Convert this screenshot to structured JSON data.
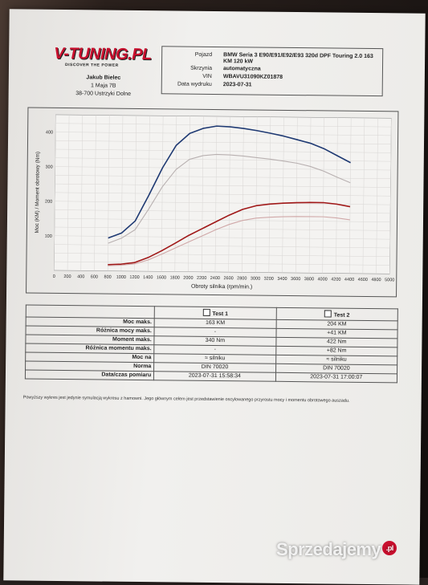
{
  "logo": {
    "wordmark": "V-TUNING.PL",
    "tagline": "DISCOVER THE POWER"
  },
  "owner": {
    "name": "Jakub Bielec",
    "street": "1 Maja 7B",
    "city": "38-700 Ustrzyki Dolne"
  },
  "vehicle": {
    "rows": [
      {
        "key": "Pojazd",
        "value": "BMW Seria 3 E90/E91/E92/E93 320d DPF Touring 2.0 163 KM 120 kW"
      },
      {
        "key": "Skrzynia",
        "value": "automatyczna"
      },
      {
        "key": "VIN",
        "value": "WBAVU31090KZ01878"
      },
      {
        "key": "Data wydruku",
        "value": "2023-07-31"
      }
    ]
  },
  "chart_data": {
    "type": "line",
    "xlabel": "Obroty silnika (rpm/min.)",
    "ylabel": "Moc (KM) / Moment obrotowy (Nm)",
    "xlim": [
      0,
      5000
    ],
    "ylim": [
      0,
      450
    ],
    "x_ticks": [
      0,
      200,
      400,
      600,
      800,
      1000,
      1200,
      1400,
      1600,
      1800,
      2000,
      2200,
      2400,
      2600,
      2800,
      3000,
      3200,
      3400,
      3600,
      3800,
      4000,
      4200,
      4400,
      4600,
      4800,
      5000
    ],
    "y_ticks": [
      100,
      200,
      300,
      400
    ],
    "grid": true,
    "series": [
      {
        "color": "#1f3a73",
        "x": [
          800,
          1000,
          1200,
          1400,
          1600,
          1800,
          2000,
          2200,
          2400,
          2600,
          2800,
          3000,
          3200,
          3400,
          3600,
          3800,
          4000,
          4200,
          4400
        ],
        "values": [
          95,
          110,
          145,
          220,
          300,
          365,
          400,
          415,
          422,
          420,
          416,
          410,
          403,
          395,
          385,
          375,
          360,
          340,
          320
        ]
      },
      {
        "color": "#b8b0b0",
        "x": [
          800,
          1000,
          1200,
          1400,
          1600,
          1800,
          2000,
          2200,
          2400,
          2600,
          2800,
          3000,
          3200,
          3400,
          3600,
          3800,
          4000,
          4200,
          4400
        ],
        "values": [
          80,
          95,
          120,
          180,
          245,
          295,
          325,
          336,
          340,
          339,
          336,
          332,
          328,
          323,
          317,
          308,
          295,
          278,
          262
        ]
      },
      {
        "color": "#a01818",
        "x": [
          800,
          1000,
          1200,
          1400,
          1600,
          1800,
          2000,
          2200,
          2400,
          2600,
          2800,
          3000,
          3200,
          3400,
          3600,
          3800,
          4000,
          4200,
          4400
        ],
        "values": [
          18,
          20,
          25,
          40,
          60,
          82,
          105,
          125,
          145,
          165,
          182,
          193,
          198,
          201,
          203,
          204,
          204,
          200,
          193
        ]
      },
      {
        "color": "#d0a8a8",
        "x": [
          800,
          1000,
          1200,
          1400,
          1600,
          1800,
          2000,
          2200,
          2400,
          2600,
          2800,
          3000,
          3200,
          3400,
          3600,
          3800,
          4000,
          4200,
          4400
        ],
        "values": [
          15,
          17,
          21,
          33,
          50,
          68,
          86,
          104,
          122,
          138,
          150,
          157,
          160,
          162,
          163,
          163,
          163,
          160,
          155
        ]
      }
    ]
  },
  "results": {
    "headers": [
      "Test 1",
      "Test 2"
    ],
    "rows": [
      {
        "label": "Moc maks.",
        "t1": "163 KM",
        "t2": "204 KM"
      },
      {
        "label": "Różnica mocy maks.",
        "t1": "-",
        "t2": "+41 KM"
      },
      {
        "label": "Moment maks.",
        "t1": "340 Nm",
        "t2": "422 Nm"
      },
      {
        "label": "Różnica momentu maks.",
        "t1": "-",
        "t2": "+82 Nm"
      },
      {
        "label": "Moc na",
        "t1": "≈ silniku",
        "t2": "≈ silniku"
      },
      {
        "label": "Norma",
        "t1": "DIN 70020",
        "t2": "DIN 70020"
      },
      {
        "label": "Data/czas pomiaru",
        "t1": "2023-07-31 15:58:34",
        "t2": "2023-07-31 17:00:07"
      }
    ]
  },
  "footnote": "Powyższy wykres jest jedynie symulacją wykresu z hamowni. Jego głównym celem jest przedstawienie oscylowanego przyrostu mocy i momentu obrotowego auszadu.",
  "watermark": {
    "text": "Sprzedajemy",
    "badge": ".pl"
  }
}
